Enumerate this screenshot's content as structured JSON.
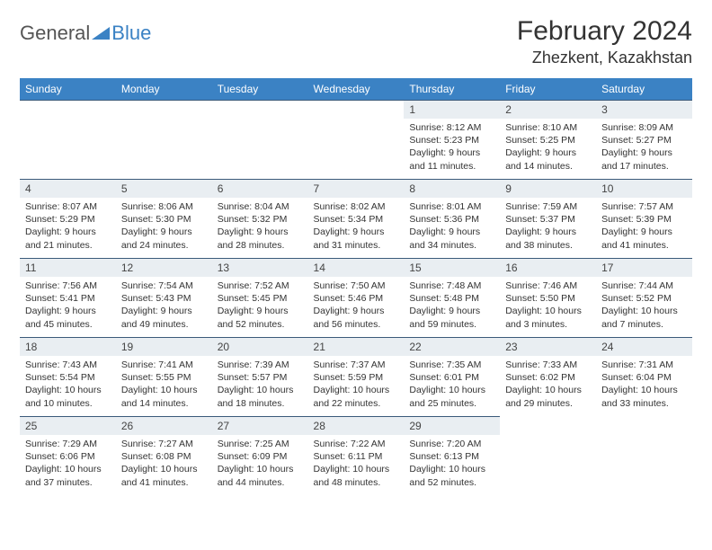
{
  "logo": {
    "general": "General",
    "blue": "Blue"
  },
  "title": "February 2024",
  "location": "Zhezkent, Kazakhstan",
  "colors": {
    "header_bg": "#3b82c4",
    "header_text": "#ffffff",
    "daynum_bg": "#e9eef2",
    "divider": "#3b5a7a",
    "page_bg": "#ffffff",
    "text": "#333333"
  },
  "weekdays": [
    "Sunday",
    "Monday",
    "Tuesday",
    "Wednesday",
    "Thursday",
    "Friday",
    "Saturday"
  ],
  "layout": {
    "type": "calendar",
    "columns": 7,
    "rows": 5,
    "start_weekday_index": 4,
    "cell_font_size": 10.5,
    "header_font_size": 12,
    "title_font_size": 30,
    "location_font_size": 18
  },
  "days": [
    {
      "n": "1",
      "sunrise": "8:12 AM",
      "sunset": "5:23 PM",
      "daylight": "9 hours and 11 minutes."
    },
    {
      "n": "2",
      "sunrise": "8:10 AM",
      "sunset": "5:25 PM",
      "daylight": "9 hours and 14 minutes."
    },
    {
      "n": "3",
      "sunrise": "8:09 AM",
      "sunset": "5:27 PM",
      "daylight": "9 hours and 17 minutes."
    },
    {
      "n": "4",
      "sunrise": "8:07 AM",
      "sunset": "5:29 PM",
      "daylight": "9 hours and 21 minutes."
    },
    {
      "n": "5",
      "sunrise": "8:06 AM",
      "sunset": "5:30 PM",
      "daylight": "9 hours and 24 minutes."
    },
    {
      "n": "6",
      "sunrise": "8:04 AM",
      "sunset": "5:32 PM",
      "daylight": "9 hours and 28 minutes."
    },
    {
      "n": "7",
      "sunrise": "8:02 AM",
      "sunset": "5:34 PM",
      "daylight": "9 hours and 31 minutes."
    },
    {
      "n": "8",
      "sunrise": "8:01 AM",
      "sunset": "5:36 PM",
      "daylight": "9 hours and 34 minutes."
    },
    {
      "n": "9",
      "sunrise": "7:59 AM",
      "sunset": "5:37 PM",
      "daylight": "9 hours and 38 minutes."
    },
    {
      "n": "10",
      "sunrise": "7:57 AM",
      "sunset": "5:39 PM",
      "daylight": "9 hours and 41 minutes."
    },
    {
      "n": "11",
      "sunrise": "7:56 AM",
      "sunset": "5:41 PM",
      "daylight": "9 hours and 45 minutes."
    },
    {
      "n": "12",
      "sunrise": "7:54 AM",
      "sunset": "5:43 PM",
      "daylight": "9 hours and 49 minutes."
    },
    {
      "n": "13",
      "sunrise": "7:52 AM",
      "sunset": "5:45 PM",
      "daylight": "9 hours and 52 minutes."
    },
    {
      "n": "14",
      "sunrise": "7:50 AM",
      "sunset": "5:46 PM",
      "daylight": "9 hours and 56 minutes."
    },
    {
      "n": "15",
      "sunrise": "7:48 AM",
      "sunset": "5:48 PM",
      "daylight": "9 hours and 59 minutes."
    },
    {
      "n": "16",
      "sunrise": "7:46 AM",
      "sunset": "5:50 PM",
      "daylight": "10 hours and 3 minutes."
    },
    {
      "n": "17",
      "sunrise": "7:44 AM",
      "sunset": "5:52 PM",
      "daylight": "10 hours and 7 minutes."
    },
    {
      "n": "18",
      "sunrise": "7:43 AM",
      "sunset": "5:54 PM",
      "daylight": "10 hours and 10 minutes."
    },
    {
      "n": "19",
      "sunrise": "7:41 AM",
      "sunset": "5:55 PM",
      "daylight": "10 hours and 14 minutes."
    },
    {
      "n": "20",
      "sunrise": "7:39 AM",
      "sunset": "5:57 PM",
      "daylight": "10 hours and 18 minutes."
    },
    {
      "n": "21",
      "sunrise": "7:37 AM",
      "sunset": "5:59 PM",
      "daylight": "10 hours and 22 minutes."
    },
    {
      "n": "22",
      "sunrise": "7:35 AM",
      "sunset": "6:01 PM",
      "daylight": "10 hours and 25 minutes."
    },
    {
      "n": "23",
      "sunrise": "7:33 AM",
      "sunset": "6:02 PM",
      "daylight": "10 hours and 29 minutes."
    },
    {
      "n": "24",
      "sunrise": "7:31 AM",
      "sunset": "6:04 PM",
      "daylight": "10 hours and 33 minutes."
    },
    {
      "n": "25",
      "sunrise": "7:29 AM",
      "sunset": "6:06 PM",
      "daylight": "10 hours and 37 minutes."
    },
    {
      "n": "26",
      "sunrise": "7:27 AM",
      "sunset": "6:08 PM",
      "daylight": "10 hours and 41 minutes."
    },
    {
      "n": "27",
      "sunrise": "7:25 AM",
      "sunset": "6:09 PM",
      "daylight": "10 hours and 44 minutes."
    },
    {
      "n": "28",
      "sunrise": "7:22 AM",
      "sunset": "6:11 PM",
      "daylight": "10 hours and 48 minutes."
    },
    {
      "n": "29",
      "sunrise": "7:20 AM",
      "sunset": "6:13 PM",
      "daylight": "10 hours and 52 minutes."
    }
  ],
  "labels": {
    "sunrise": "Sunrise:",
    "sunset": "Sunset:",
    "daylight": "Daylight:"
  }
}
